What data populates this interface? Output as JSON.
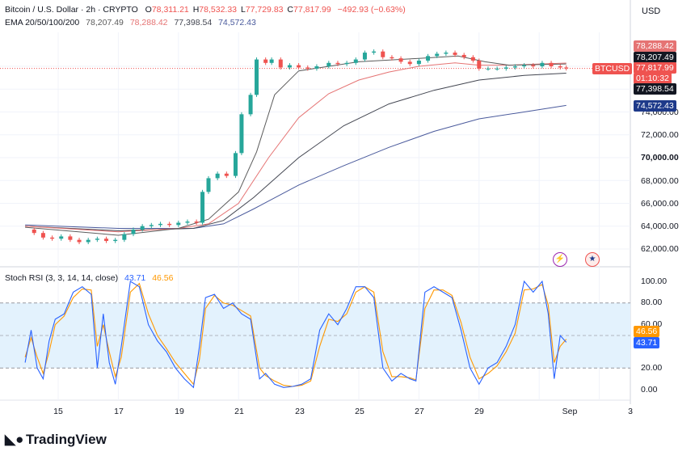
{
  "header": {
    "symbol_line": "Bitcoin / U.S. Dollar · 2h · CRYPTO",
    "open_label": "O",
    "open": "78,311.21",
    "high_label": "H",
    "high": "78,532.33",
    "low_label": "L",
    "low": "77,729.83",
    "close_label": "C",
    "close": "77,817.99",
    "change": "−492.93 (−0.63%)",
    "ema_title": "EMA 20/50/100/200",
    "ema20": "78,207.49",
    "ema50": "78,288.42",
    "ema100": "77,398.54",
    "ema200": "74,572.43"
  },
  "currency": "USD",
  "price_axis": {
    "ticks": [
      "74,000.00",
      "72,000.00",
      "70,000.00",
      "68,000.00",
      "66,000.00",
      "64,000.00",
      "62,000.00"
    ],
    "labels": {
      "ema50": "78,288.42",
      "ema20": "78,207.49",
      "last": "77,817.99",
      "countdown": "01:10:32",
      "ema100": "77,398.54",
      "ema200": "74,572.43",
      "ticker": "BTCUSD"
    }
  },
  "rsi": {
    "title": "Stoch RSI (3, 3, 14, 14, close)",
    "k": "43.71",
    "d": "46.56",
    "ticks": [
      "100.00",
      "80.00",
      "60.00",
      "40.00",
      "20.00",
      "0.00"
    ],
    "label_d": "46.56",
    "label_k": "43.71"
  },
  "x_axis": [
    "15",
    "17",
    "19",
    "21",
    "23",
    "25",
    "27",
    "29",
    "Sep",
    "3"
  ],
  "brand": "TradingView",
  "colors": {
    "up": "#26a69a",
    "down": "#ef5350",
    "ema20": "#5c5c5c",
    "ema50": "#e57373",
    "ema100": "#434651",
    "ema200": "#4a5a9c",
    "k": "#2962ff",
    "d": "#ff9800",
    "band": "#e3f2fd"
  },
  "chart_data": {
    "type": "candlestick",
    "title": "Bitcoin / U.S. Dollar · 2h · CRYPTO",
    "x_ticks": [
      "15",
      "17",
      "19",
      "21",
      "23",
      "25",
      "27",
      "29",
      "Sep",
      "3"
    ],
    "y_unit": "USD",
    "ylim": [
      61500,
      79800
    ],
    "close_path": [
      [
        13.9,
        63700
      ],
      [
        14.2,
        63400
      ],
      [
        14.5,
        63000
      ],
      [
        14.8,
        62900
      ],
      [
        15.1,
        63100
      ],
      [
        15.4,
        62800
      ],
      [
        15.7,
        62600
      ],
      [
        16.0,
        62800
      ],
      [
        16.3,
        62900
      ],
      [
        16.6,
        62700
      ],
      [
        16.9,
        62800
      ],
      [
        17.2,
        63300
      ],
      [
        17.5,
        63700
      ],
      [
        17.8,
        64000
      ],
      [
        18.1,
        64100
      ],
      [
        18.4,
        64200
      ],
      [
        18.7,
        64100
      ],
      [
        19.0,
        64300
      ],
      [
        19.3,
        64400
      ],
      [
        19.6,
        64300
      ],
      [
        19.8,
        67000
      ],
      [
        20.0,
        68200
      ],
      [
        20.3,
        68600
      ],
      [
        20.6,
        68400
      ],
      [
        20.9,
        70400
      ],
      [
        21.1,
        73800
      ],
      [
        21.4,
        75500
      ],
      [
        21.6,
        78600
      ],
      [
        21.9,
        78300
      ],
      [
        22.1,
        78600
      ],
      [
        22.4,
        77900
      ],
      [
        22.7,
        78100
      ],
      [
        23.0,
        77900
      ],
      [
        23.3,
        77800
      ],
      [
        23.6,
        78000
      ],
      [
        24.0,
        78300
      ],
      [
        24.3,
        78200
      ],
      [
        24.6,
        78300
      ],
      [
        24.9,
        78600
      ],
      [
        25.2,
        79200
      ],
      [
        25.5,
        79300
      ],
      [
        25.8,
        78800
      ],
      [
        26.1,
        78700
      ],
      [
        26.4,
        78400
      ],
      [
        26.7,
        78200
      ],
      [
        27.0,
        78500
      ],
      [
        27.3,
        78900
      ],
      [
        27.6,
        79100
      ],
      [
        27.9,
        79200
      ],
      [
        28.2,
        79000
      ],
      [
        28.5,
        78800
      ],
      [
        28.8,
        78500
      ],
      [
        29.0,
        77800
      ],
      [
        29.3,
        77800
      ],
      [
        29.6,
        77800
      ],
      [
        29.9,
        77900
      ],
      [
        30.2,
        78000
      ],
      [
        30.5,
        78100
      ],
      [
        30.8,
        78000
      ],
      [
        31.1,
        78300
      ],
      [
        31.4,
        78000
      ],
      [
        31.7,
        77900
      ],
      [
        31.9,
        77818
      ]
    ],
    "ema20_path": [
      [
        13.9,
        63900
      ],
      [
        17.0,
        63200
      ],
      [
        19.0,
        63800
      ],
      [
        20.0,
        64600
      ],
      [
        21.0,
        67000
      ],
      [
        21.6,
        70500
      ],
      [
        22.2,
        75500
      ],
      [
        23.0,
        77600
      ],
      [
        25.0,
        78400
      ],
      [
        27.0,
        78700
      ],
      [
        28.3,
        78900
      ],
      [
        29.2,
        78400
      ],
      [
        30.0,
        78100
      ],
      [
        31.9,
        78207
      ]
    ],
    "ema50_path": [
      [
        13.9,
        64000
      ],
      [
        17.0,
        63500
      ],
      [
        19.0,
        63800
      ],
      [
        20.0,
        64200
      ],
      [
        21.0,
        66000
      ],
      [
        22.0,
        70000
      ],
      [
        23.0,
        73500
      ],
      [
        24.0,
        75600
      ],
      [
        25.0,
        76800
      ],
      [
        26.0,
        77500
      ],
      [
        27.0,
        78000
      ],
      [
        28.2,
        78300
      ],
      [
        29.0,
        78100
      ],
      [
        30.0,
        78100
      ],
      [
        31.9,
        78288
      ]
    ],
    "ema100_path": [
      [
        13.9,
        64000
      ],
      [
        17.0,
        63600
      ],
      [
        19.5,
        63800
      ],
      [
        20.5,
        64500
      ],
      [
        21.5,
        66500
      ],
      [
        23.0,
        70000
      ],
      [
        24.5,
        72800
      ],
      [
        26.0,
        74700
      ],
      [
        27.5,
        75900
      ],
      [
        29.0,
        76800
      ],
      [
        30.5,
        77200
      ],
      [
        31.9,
        77399
      ]
    ],
    "ema200_path": [
      [
        13.9,
        64100
      ],
      [
        17.0,
        63800
      ],
      [
        19.5,
        63800
      ],
      [
        20.5,
        64200
      ],
      [
        21.5,
        65500
      ],
      [
        23.0,
        67600
      ],
      [
        24.5,
        69300
      ],
      [
        26.0,
        70900
      ],
      [
        27.5,
        72300
      ],
      [
        29.0,
        73400
      ],
      [
        30.5,
        74000
      ],
      [
        31.9,
        74572
      ]
    ],
    "stoch_rsi": {
      "ylim": [
        0,
        100
      ],
      "k_path": [
        [
          13.9,
          25
        ],
        [
          14.1,
          55
        ],
        [
          14.3,
          20
        ],
        [
          14.5,
          10
        ],
        [
          14.7,
          45
        ],
        [
          14.9,
          65
        ],
        [
          15.2,
          70
        ],
        [
          15.5,
          90
        ],
        [
          15.8,
          95
        ],
        [
          16.1,
          88
        ],
        [
          16.3,
          20
        ],
        [
          16.5,
          70
        ],
        [
          16.7,
          25
        ],
        [
          16.9,
          5
        ],
        [
          17.1,
          40
        ],
        [
          17.4,
          100
        ],
        [
          17.7,
          95
        ],
        [
          18.0,
          60
        ],
        [
          18.3,
          45
        ],
        [
          18.6,
          35
        ],
        [
          18.9,
          20
        ],
        [
          19.2,
          10
        ],
        [
          19.5,
          2
        ],
        [
          19.7,
          40
        ],
        [
          19.9,
          85
        ],
        [
          20.2,
          88
        ],
        [
          20.5,
          75
        ],
        [
          20.8,
          80
        ],
        [
          21.1,
          70
        ],
        [
          21.4,
          65
        ],
        [
          21.7,
          10
        ],
        [
          21.9,
          15
        ],
        [
          22.2,
          5
        ],
        [
          22.5,
          2
        ],
        [
          22.8,
          3
        ],
        [
          23.1,
          5
        ],
        [
          23.4,
          10
        ],
        [
          23.7,
          55
        ],
        [
          24.0,
          70
        ],
        [
          24.3,
          60
        ],
        [
          24.6,
          75
        ],
        [
          24.9,
          95
        ],
        [
          25.2,
          95
        ],
        [
          25.5,
          85
        ],
        [
          25.8,
          20
        ],
        [
          26.1,
          8
        ],
        [
          26.4,
          15
        ],
        [
          26.7,
          10
        ],
        [
          26.9,
          8
        ],
        [
          27.2,
          90
        ],
        [
          27.5,
          95
        ],
        [
          27.8,
          90
        ],
        [
          28.1,
          85
        ],
        [
          28.4,
          55
        ],
        [
          28.7,
          20
        ],
        [
          29.0,
          5
        ],
        [
          29.3,
          20
        ],
        [
          29.6,
          25
        ],
        [
          29.9,
          40
        ],
        [
          30.2,
          60
        ],
        [
          30.5,
          100
        ],
        [
          30.8,
          90
        ],
        [
          31.1,
          100
        ],
        [
          31.3,
          70
        ],
        [
          31.5,
          10
        ],
        [
          31.7,
          50
        ],
        [
          31.9,
          43.71
        ]
      ],
      "d_path": [
        [
          13.9,
          30
        ],
        [
          14.1,
          48
        ],
        [
          14.3,
          30
        ],
        [
          14.5,
          15
        ],
        [
          14.7,
          35
        ],
        [
          14.9,
          60
        ],
        [
          15.2,
          68
        ],
        [
          15.5,
          85
        ],
        [
          15.8,
          93
        ],
        [
          16.1,
          92
        ],
        [
          16.3,
          40
        ],
        [
          16.5,
          60
        ],
        [
          16.7,
          35
        ],
        [
          16.9,
          12
        ],
        [
          17.1,
          30
        ],
        [
          17.4,
          90
        ],
        [
          17.7,
          98
        ],
        [
          18.0,
          70
        ],
        [
          18.3,
          50
        ],
        [
          18.6,
          38
        ],
        [
          18.9,
          25
        ],
        [
          19.2,
          15
        ],
        [
          19.5,
          5
        ],
        [
          19.7,
          28
        ],
        [
          19.9,
          75
        ],
        [
          20.2,
          87
        ],
        [
          20.5,
          80
        ],
        [
          20.8,
          78
        ],
        [
          21.1,
          73
        ],
        [
          21.4,
          68
        ],
        [
          21.7,
          20
        ],
        [
          21.9,
          13
        ],
        [
          22.2,
          8
        ],
        [
          22.5,
          4
        ],
        [
          22.8,
          3
        ],
        [
          23.1,
          4
        ],
        [
          23.4,
          8
        ],
        [
          23.7,
          40
        ],
        [
          24.0,
          65
        ],
        [
          24.3,
          63
        ],
        [
          24.6,
          70
        ],
        [
          24.9,
          90
        ],
        [
          25.2,
          95
        ],
        [
          25.5,
          90
        ],
        [
          25.8,
          35
        ],
        [
          26.1,
          12
        ],
        [
          26.4,
          12
        ],
        [
          26.7,
          11
        ],
        [
          26.9,
          9
        ],
        [
          27.2,
          75
        ],
        [
          27.5,
          92
        ],
        [
          27.8,
          92
        ],
        [
          28.1,
          87
        ],
        [
          28.4,
          62
        ],
        [
          28.7,
          30
        ],
        [
          29.0,
          10
        ],
        [
          29.3,
          15
        ],
        [
          29.6,
          22
        ],
        [
          29.9,
          35
        ],
        [
          30.2,
          52
        ],
        [
          30.5,
          92
        ],
        [
          30.8,
          93
        ],
        [
          31.1,
          97
        ],
        [
          31.3,
          78
        ],
        [
          31.5,
          25
        ],
        [
          31.7,
          40
        ],
        [
          31.9,
          46.56
        ]
      ]
    }
  }
}
